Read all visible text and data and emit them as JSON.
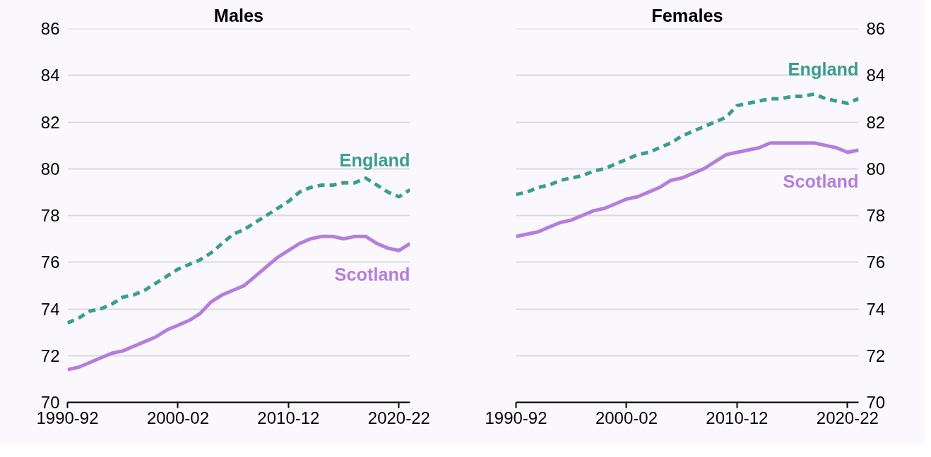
{
  "chart_data": [
    {
      "type": "line",
      "title": "Males",
      "categories": [
        "1990-92",
        null,
        null,
        null,
        null,
        null,
        null,
        null,
        null,
        null,
        "2000-02",
        null,
        null,
        null,
        null,
        null,
        null,
        null,
        null,
        null,
        "2010-12",
        null,
        null,
        null,
        null,
        null,
        null,
        null,
        null,
        null,
        "2020-22",
        null
      ],
      "series": [
        {
          "name": "England",
          "color": "#3a9e8f",
          "line_style": "dashed",
          "values": [
            73.4,
            73.6,
            73.9,
            74.0,
            74.2,
            74.5,
            74.6,
            74.8,
            75.1,
            75.4,
            75.7,
            75.9,
            76.1,
            76.4,
            76.8,
            77.2,
            77.4,
            77.7,
            78.0,
            78.3,
            78.6,
            79.0,
            79.2,
            79.3,
            79.3,
            79.4,
            79.4,
            79.6,
            79.3,
            79.0,
            78.8,
            79.1
          ]
        },
        {
          "name": "Scotland",
          "color": "#b57edc",
          "line_style": "solid",
          "values": [
            71.4,
            71.5,
            71.7,
            71.9,
            72.1,
            72.2,
            72.4,
            72.6,
            72.8,
            73.1,
            73.3,
            73.5,
            73.8,
            74.3,
            74.6,
            74.8,
            75.0,
            75.4,
            75.8,
            76.2,
            76.5,
            76.8,
            77.0,
            77.1,
            77.1,
            77.0,
            77.1,
            77.1,
            76.8,
            76.6,
            76.5,
            76.8
          ]
        }
      ],
      "ylim": [
        70,
        86
      ],
      "yticks": [
        70,
        72,
        74,
        76,
        78,
        80,
        82,
        84,
        86
      ],
      "grid": "y"
    },
    {
      "type": "line",
      "title": "Females",
      "categories": [
        "1990-92",
        null,
        null,
        null,
        null,
        null,
        null,
        null,
        null,
        null,
        "2000-02",
        null,
        null,
        null,
        null,
        null,
        null,
        null,
        null,
        null,
        "2010-12",
        null,
        null,
        null,
        null,
        null,
        null,
        null,
        null,
        null,
        "2020-22",
        null
      ],
      "series": [
        {
          "name": "England",
          "color": "#3a9e8f",
          "line_style": "dashed",
          "values": [
            78.9,
            79.0,
            79.2,
            79.3,
            79.5,
            79.6,
            79.7,
            79.9,
            80.0,
            80.2,
            80.4,
            80.6,
            80.7,
            80.9,
            81.1,
            81.4,
            81.6,
            81.8,
            82.0,
            82.2,
            82.7,
            82.8,
            82.9,
            83.0,
            83.0,
            83.1,
            83.1,
            83.2,
            83.0,
            82.9,
            82.8,
            83.0
          ]
        },
        {
          "name": "Scotland",
          "color": "#b57edc",
          "line_style": "solid",
          "values": [
            77.1,
            77.2,
            77.3,
            77.5,
            77.7,
            77.8,
            78.0,
            78.2,
            78.3,
            78.5,
            78.7,
            78.8,
            79.0,
            79.2,
            79.5,
            79.6,
            79.8,
            80.0,
            80.3,
            80.6,
            80.7,
            80.8,
            80.9,
            81.1,
            81.1,
            81.1,
            81.1,
            81.1,
            81.0,
            80.9,
            80.7,
            80.8
          ]
        }
      ],
      "ylim": [
        70,
        86
      ],
      "yticks": [
        70,
        72,
        74,
        76,
        78,
        80,
        82,
        84,
        86
      ],
      "grid": "y"
    }
  ]
}
